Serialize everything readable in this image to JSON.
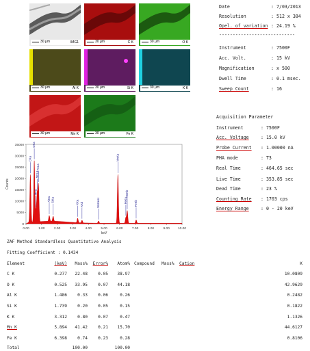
{
  "maps": [
    {
      "label": "IMG1",
      "scale": "30 µm",
      "color": "#d8d8d8"
    },
    {
      "label": "C K",
      "scale": "30 µm",
      "color": "#b01010"
    },
    {
      "label": "O K",
      "scale": "30 µm",
      "color": "#2e9a1c"
    },
    {
      "label": "Al K",
      "scale": "30 µm",
      "color": "#5a5a1a"
    },
    {
      "label": "Si K",
      "scale": "30 µm",
      "color": "#6a1a6a"
    },
    {
      "label": "K K",
      "scale": "30 µm",
      "color": "#0f4a55"
    },
    {
      "label": "Mn K",
      "scale": "30 µm",
      "color": "#c01414"
    },
    {
      "label": "Fe K",
      "scale": "30 µm",
      "color": "#1a7a18"
    }
  ],
  "info": [
    {
      "key": "Date",
      "value": "7/03/2013"
    },
    {
      "key": "Resolution",
      "value": "512 x 384"
    },
    {
      "key": "Opel. of variation",
      "value": "24.19 %"
    }
  ],
  "separator": "----------------------------",
  "info2": [
    {
      "key": "Instrument",
      "value": "7500F"
    },
    {
      "key": "Acc. Volt.",
      "value": "15 kV"
    },
    {
      "key": "Magnification",
      "value": "x 500"
    },
    {
      "key": "Dwell Time",
      "value": "0.1 msec."
    },
    {
      "key": "Sweep Count",
      "value": "16"
    }
  ],
  "acq": {
    "title": "Acquisition Parameter",
    "rows": [
      {
        "key": "Instrument",
        "value": ": 7500F"
      },
      {
        "key": "Acc. Voltage",
        "value": ": 15.0 kV"
      },
      {
        "key": "Probe Current",
        "value": ": 1.00000 nA"
      },
      {
        "key": "PHA mode",
        "value": ": T3"
      },
      {
        "key": "Real Time",
        "value": ": 464.65 sec"
      },
      {
        "key": "Live Time",
        "value": ": 353.85 sec"
      },
      {
        "key": "Dead Time",
        "value": ": 23 %"
      },
      {
        "key": "Counting Rate",
        "value": ": 1703 cps"
      },
      {
        "key": "Energy Range",
        "value": ": 0 - 20 keV"
      }
    ]
  },
  "chart_data": {
    "type": "line",
    "ylabel": "Counts",
    "xlabel": "keV",
    "xlim": [
      0,
      10
    ],
    "ylim": [
      0,
      35000
    ],
    "yticks": [
      "0",
      "5000",
      "10000",
      "15000",
      "20000",
      "25000",
      "30000",
      "35000"
    ],
    "xticks": [
      "0.00",
      "1.00",
      "2.00",
      "3.00",
      "4.00",
      "5.00",
      "6.00",
      "7.00",
      "8.00",
      "9.00",
      "10.00"
    ],
    "peaks": [
      {
        "x": 0.28,
        "y": 21000,
        "label": "CKa"
      },
      {
        "x": 0.53,
        "y": 27000,
        "label": "OKa"
      },
      {
        "x": 0.64,
        "y": 5000,
        "label": "MnLl"
      },
      {
        "x": 0.72,
        "y": 12000,
        "label": "MnLa"
      },
      {
        "x": 0.8,
        "y": 16000,
        "label": "FeLa"
      },
      {
        "x": 1.49,
        "y": 2500,
        "label": "AlKa"
      },
      {
        "x": 1.74,
        "y": 2200,
        "label": "SiKa"
      },
      {
        "x": 3.31,
        "y": 2000,
        "label": "KKa"
      },
      {
        "x": 3.59,
        "y": 1200,
        "label": "KKb"
      },
      {
        "x": 4.65,
        "y": 1000,
        "label": "MnKesc"
      },
      {
        "x": 5.89,
        "y": 21500,
        "label": "MnKa"
      },
      {
        "x": 6.49,
        "y": 5500,
        "label": "MnKb"
      },
      {
        "x": 6.4,
        "y": 2500,
        "label": "FeKa"
      },
      {
        "x": 7.06,
        "y": 1500,
        "label": "FeKb"
      }
    ]
  },
  "zaf": {
    "title": "ZAF Method Standardless Quantitative Analysis",
    "fitting": "Fitting Coefficient : 0.1434",
    "headers": [
      "Element",
      "(keV)",
      "Mass%",
      "Error%",
      "Atom%",
      "Compound",
      "Mass%",
      "Cation",
      "K"
    ],
    "rows": [
      [
        "C K",
        "0.277",
        "22.48",
        "0.05",
        "38.97",
        "",
        "",
        "",
        "10.0809"
      ],
      [
        "O K",
        "0.525",
        "33.95",
        "0.07",
        "44.18",
        "",
        "",
        "",
        "42.9629"
      ],
      [
        "Al K",
        "1.486",
        "0.33",
        "0.06",
        "0.26",
        "",
        "",
        "",
        "0.2482"
      ],
      [
        "Si K",
        "1.739",
        "0.20",
        "0.05",
        "0.15",
        "",
        "",
        "",
        "0.1822"
      ],
      [
        "K K",
        "3.312",
        "0.80",
        "0.07",
        "0.47",
        "",
        "",
        "",
        "1.1326"
      ],
      [
        "Mn K",
        "5.894",
        "41.42",
        "0.21",
        "15.70",
        "",
        "",
        "",
        "44.6127"
      ],
      [
        "Fe K",
        "6.398",
        "0.74",
        "0.23",
        "0.28",
        "",
        "",
        "",
        "0.8106"
      ]
    ],
    "total": [
      "Total",
      "",
      "100.00",
      "",
      "100.00",
      "",
      "",
      "",
      ""
    ]
  }
}
